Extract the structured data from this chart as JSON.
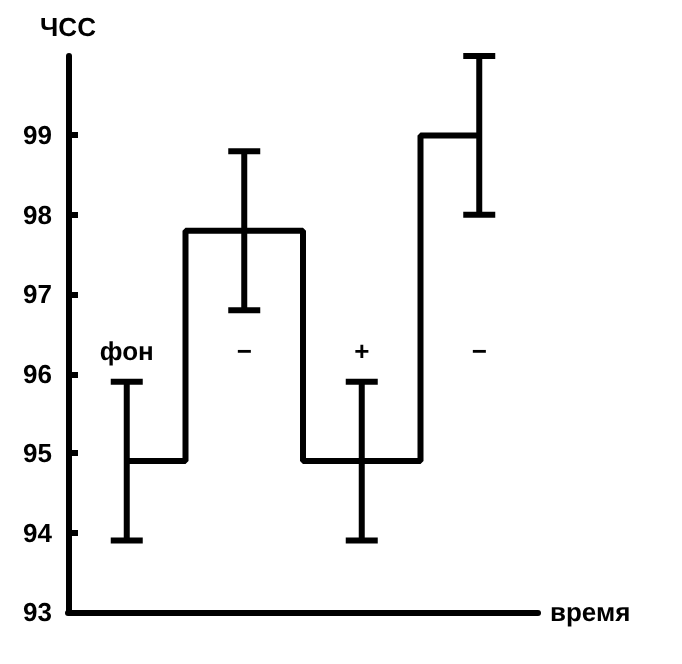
{
  "chart_data": {
    "type": "step",
    "xlabel": "время",
    "ylabel": "ЧСС",
    "categories": [
      null,
      null,
      null,
      null
    ],
    "values": [
      94.9,
      97.8,
      94.9,
      99.0
    ],
    "errors": [
      1,
      1,
      1,
      1
    ],
    "color": "#000000",
    "ylim": [
      93,
      100
    ],
    "yticks": [
      93,
      94,
      95,
      96,
      97,
      98,
      99
    ],
    "grid": false,
    "line_style": "solid",
    "annotations": [
      "фон",
      "−",
      "+",
      "−"
    ]
  }
}
